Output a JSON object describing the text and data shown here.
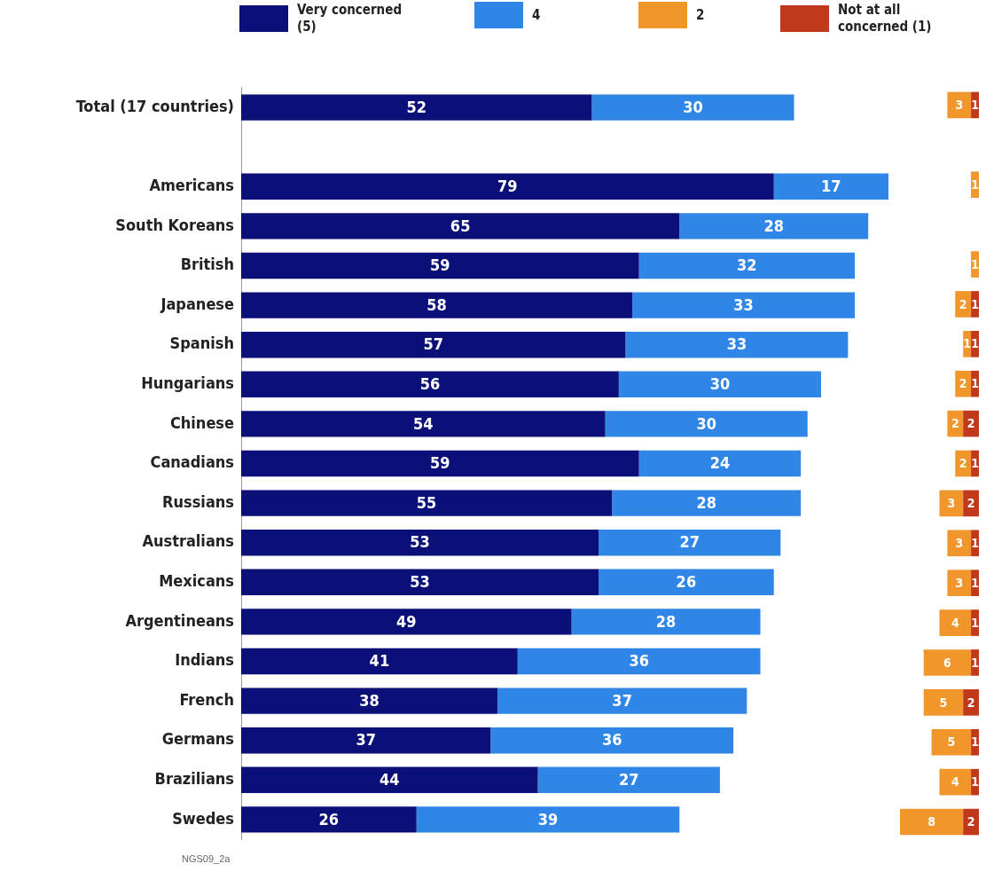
{
  "chart_data": [
    {
      "type": "bar",
      "orientation": "horizontal",
      "stacked": true,
      "legend": "top",
      "grid": false,
      "tick_labels": "y",
      "data_labels": true,
      "categories": [
        "Total (17 countries)",
        null,
        "Americans",
        "South Koreans",
        "British",
        "Japanese",
        "Spanish",
        "Hungarians",
        "Chinese",
        "Canadians",
        "Russians",
        "Australians",
        "Mexicans",
        "Argentineans",
        "Indians",
        "French",
        "Germans",
        "Brazilians",
        "Swedes"
      ],
      "xlim": [
        0,
        96
      ],
      "series": [
        {
          "name": "Very concerned (5)",
          "color": "#0b0f78",
          "values": [
            52,
            null,
            79,
            65,
            59,
            58,
            57,
            56,
            54,
            59,
            55,
            53,
            53,
            49,
            41,
            38,
            37,
            44,
            26
          ]
        },
        {
          "name": "4",
          "color": "#2f86e6",
          "values": [
            30,
            null,
            17,
            28,
            32,
            33,
            33,
            30,
            30,
            24,
            28,
            27,
            26,
            28,
            36,
            37,
            36,
            27,
            39
          ]
        }
      ],
      "annotations": [
        "NGS09_2a"
      ]
    },
    {
      "type": "bar",
      "orientation": "horizontal",
      "stacked": true,
      "legend": "top",
      "grid": false,
      "tick_labels": false,
      "data_labels": true,
      "categories": [
        null,
        null,
        null,
        null,
        null,
        null,
        null,
        null,
        null,
        null,
        null,
        null,
        null,
        null,
        null,
        null,
        null,
        null,
        null
      ],
      "xlim": [
        10,
        0
      ],
      "series": [
        {
          "name": "Not at all concerned (1)",
          "color": "#c0391b",
          "values": [
            1,
            null,
            null,
            null,
            null,
            1,
            1,
            1,
            2,
            1,
            2,
            1,
            1,
            1,
            1,
            2,
            1,
            1,
            2
          ]
        },
        {
          "name": "2",
          "color": "#f0962a",
          "values": [
            3,
            null,
            1,
            null,
            1,
            2,
            1,
            2,
            2,
            2,
            3,
            3,
            3,
            4,
            6,
            5,
            5,
            4,
            8
          ]
        }
      ]
    }
  ]
}
